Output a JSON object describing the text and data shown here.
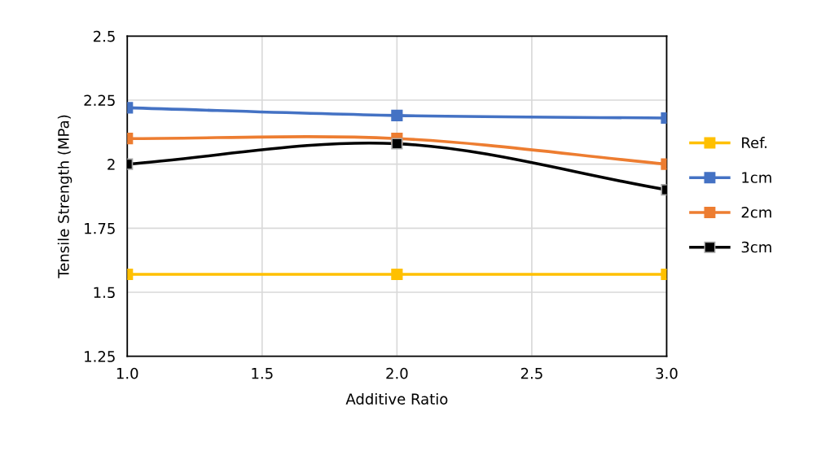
{
  "chart_data": {
    "type": "line",
    "xlabel": "Additive Ratio",
    "ylabel": "Tensile Strength (MPa)",
    "x": [
      1.0,
      2.0,
      3.0
    ],
    "series": [
      {
        "name": "Ref.",
        "color": "#ffc000",
        "values": [
          1.57,
          1.57,
          1.57
        ]
      },
      {
        "name": "1cm",
        "color": "#4472c4",
        "values": [
          2.22,
          2.19,
          2.18
        ]
      },
      {
        "name": "2cm",
        "color": "#ed7d31",
        "values": [
          2.1,
          2.1,
          2.0
        ]
      },
      {
        "name": "3cm",
        "color": "#000000",
        "values": [
          2.0,
          2.08,
          1.9
        ]
      }
    ],
    "xlim": [
      1.0,
      3.0
    ],
    "xticks": [
      {
        "value": 1.0,
        "label": "1.0"
      },
      {
        "value": 1.5,
        "label": "1.5"
      },
      {
        "value": 2.0,
        "label": "2.0"
      },
      {
        "value": 2.5,
        "label": "2.5"
      },
      {
        "value": 3.0,
        "label": "3.0"
      }
    ],
    "ylim": [
      1.25,
      2.5
    ],
    "yticks": [
      1.25,
      1.5,
      1.75,
      2,
      2.25,
      2.5
    ],
    "grid": true,
    "legend": "right",
    "marker": "square",
    "line_style": "solid"
  }
}
